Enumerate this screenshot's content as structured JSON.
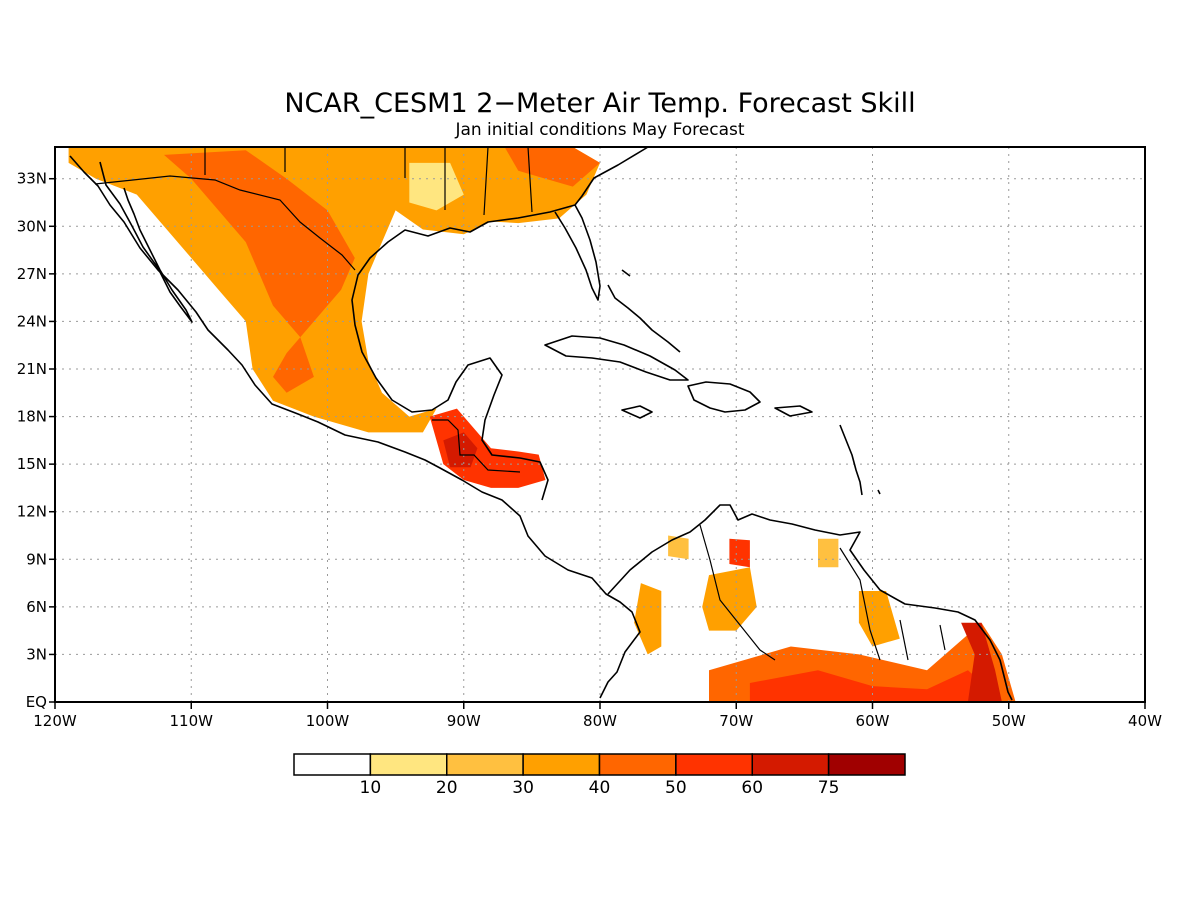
{
  "title": "NCAR_CESM1 2−Meter Air Temp. Forecast Skill",
  "subtitle": "Jan initial conditions  May Forecast",
  "map": {
    "lon_range": [
      -120,
      -40
    ],
    "lat_range": [
      0,
      35
    ],
    "x_ticks": [
      {
        "lon": -120,
        "label": "120W"
      },
      {
        "lon": -110,
        "label": "110W"
      },
      {
        "lon": -100,
        "label": "100W"
      },
      {
        "lon": -90,
        "label": "90W"
      },
      {
        "lon": -80,
        "label": "80W"
      },
      {
        "lon": -70,
        "label": "70W"
      },
      {
        "lon": -60,
        "label": "60W"
      },
      {
        "lon": -50,
        "label": "50W"
      },
      {
        "lon": -40,
        "label": "40W"
      }
    ],
    "y_ticks": [
      {
        "lat": 0,
        "label": "EQ"
      },
      {
        "lat": 3,
        "label": "3N"
      },
      {
        "lat": 6,
        "label": "6N"
      },
      {
        "lat": 9,
        "label": "9N"
      },
      {
        "lat": 12,
        "label": "12N"
      },
      {
        "lat": 15,
        "label": "15N"
      },
      {
        "lat": 18,
        "label": "18N"
      },
      {
        "lat": 21,
        "label": "21N"
      },
      {
        "lat": 24,
        "label": "24N"
      },
      {
        "lat": 27,
        "label": "27N"
      },
      {
        "lat": 30,
        "label": "30N"
      },
      {
        "lat": 33,
        "label": "33N"
      }
    ],
    "grid": true
  },
  "colorbar": {
    "colors": [
      "#ffffff",
      "#ffe680",
      "#ffc040",
      "#ffa000",
      "#ff6600",
      "#ff3300",
      "#d41a00",
      "#a00000"
    ],
    "labels": [
      "10",
      "20",
      "30",
      "40",
      "50",
      "60",
      "75"
    ]
  },
  "skill_regions": [
    {
      "name": "northern-mexico-us-southwest",
      "level": 3,
      "poly": [
        [
          -119,
          35
        ],
        [
          -113,
          35
        ],
        [
          -105,
          35
        ],
        [
          -96,
          35
        ],
        [
          -94,
          33
        ],
        [
          -95,
          31
        ],
        [
          -96,
          29
        ],
        [
          -97,
          27
        ],
        [
          -97.5,
          24
        ],
        [
          -97,
          21.5
        ],
        [
          -96,
          19.5
        ],
        [
          -94,
          18
        ],
        [
          -92,
          18.5
        ],
        [
          -93,
          17
        ],
        [
          -97,
          17
        ],
        [
          -101,
          18
        ],
        [
          -104,
          19
        ],
        [
          -105.5,
          21
        ],
        [
          -106,
          24
        ],
        [
          -108,
          26
        ],
        [
          -110,
          28
        ],
        [
          -112,
          30
        ],
        [
          -114,
          32
        ],
        [
          -117,
          33
        ],
        [
          -119,
          34
        ]
      ]
    },
    {
      "name": "mexico-core-high",
      "level": 4,
      "poly": [
        [
          -112,
          34.5
        ],
        [
          -106,
          34.8
        ],
        [
          -103,
          33
        ],
        [
          -100,
          31
        ],
        [
          -98,
          28
        ],
        [
          -99,
          26
        ],
        [
          -101,
          24
        ],
        [
          -103,
          22
        ],
        [
          -104,
          20.5
        ],
        [
          -103,
          19.5
        ],
        [
          -101,
          20.5
        ],
        [
          -102,
          23
        ],
        [
          -104,
          25
        ],
        [
          -105,
          27
        ],
        [
          -106,
          29
        ],
        [
          -108,
          31
        ],
        [
          -110,
          33
        ]
      ]
    },
    {
      "name": "south-central-us",
      "level": 3,
      "poly": [
        [
          -96,
          35
        ],
        [
          -88,
          35
        ],
        [
          -82,
          35
        ],
        [
          -80,
          34
        ],
        [
          -81,
          32
        ],
        [
          -83,
          30.5
        ],
        [
          -86,
          30.2
        ],
        [
          -88,
          30.3
        ],
        [
          -90,
          29.5
        ],
        [
          -93,
          29.8
        ],
        [
          -95,
          31
        ]
      ]
    },
    {
      "name": "southeast-us-high",
      "level": 4,
      "poly": [
        [
          -87,
          35
        ],
        [
          -82,
          35
        ],
        [
          -80,
          34
        ],
        [
          -82,
          32.5
        ],
        [
          -84,
          33
        ],
        [
          -86,
          33.5
        ]
      ]
    },
    {
      "name": "us-light-patch",
      "level": 1,
      "poly": [
        [
          -94,
          34
        ],
        [
          -91,
          34
        ],
        [
          -90,
          32
        ],
        [
          -92,
          31
        ],
        [
          -94,
          31.5
        ]
      ]
    },
    {
      "name": "central-america-core",
      "level": 5,
      "poly": [
        [
          -92.5,
          18
        ],
        [
          -90.5,
          18.5
        ],
        [
          -89,
          17
        ],
        [
          -88,
          16
        ],
        [
          -86,
          15.8
        ],
        [
          -84.5,
          15.6
        ],
        [
          -84,
          14
        ],
        [
          -86,
          13.5
        ],
        [
          -88,
          13.5
        ],
        [
          -90,
          14
        ],
        [
          -91.5,
          15
        ]
      ]
    },
    {
      "name": "guatemala-peak",
      "level": 6,
      "poly": [
        [
          -91.5,
          16.5
        ],
        [
          -90,
          17
        ],
        [
          -89,
          16
        ],
        [
          -89.5,
          14.8
        ],
        [
          -91,
          14.8
        ]
      ]
    },
    {
      "name": "colombia-west",
      "level": 3,
      "poly": [
        [
          -77,
          7.5
        ],
        [
          -75.5,
          7
        ],
        [
          -75.5,
          3.5
        ],
        [
          -76.5,
          3
        ],
        [
          -77.5,
          5
        ]
      ]
    },
    {
      "name": "venezuela-west",
      "level": 3,
      "poly": [
        [
          -72,
          8
        ],
        [
          -69,
          8.5
        ],
        [
          -68.5,
          6
        ],
        [
          -70,
          4.5
        ],
        [
          -72,
          4.5
        ],
        [
          -72.5,
          6
        ]
      ]
    },
    {
      "name": "venezuela-north-peak",
      "level": 5,
      "poly": [
        [
          -70.5,
          10.3
        ],
        [
          -69,
          10.2
        ],
        [
          -69,
          8.5
        ],
        [
          -70.5,
          8.7
        ]
      ]
    },
    {
      "name": "colombia-north-patch",
      "level": 2,
      "poly": [
        [
          -75,
          10.5
        ],
        [
          -73.5,
          10.3
        ],
        [
          -73.5,
          9
        ],
        [
          -75,
          9.2
        ]
      ]
    },
    {
      "name": "guyana-patch",
      "level": 3,
      "poly": [
        [
          -61,
          7
        ],
        [
          -59,
          7
        ],
        [
          -58,
          4
        ],
        [
          -60,
          3.5
        ],
        [
          -61,
          5
        ]
      ]
    },
    {
      "name": "trinidad-patch",
      "level": 2,
      "poly": [
        [
          -64,
          10.3
        ],
        [
          -62.5,
          10.3
        ],
        [
          -62.5,
          8.5
        ],
        [
          -64,
          8.5
        ]
      ]
    },
    {
      "name": "north-brazil-band",
      "level": 4,
      "poly": [
        [
          -72,
          2
        ],
        [
          -66,
          3.5
        ],
        [
          -61,
          3
        ],
        [
          -56,
          2
        ],
        [
          -52,
          5
        ],
        [
          -50.5,
          3
        ],
        [
          -49.5,
          0
        ],
        [
          -72,
          0
        ]
      ]
    },
    {
      "name": "amazon-high",
      "level": 5,
      "poly": [
        [
          -69,
          1.2
        ],
        [
          -64,
          2
        ],
        [
          -60,
          1
        ],
        [
          -56,
          0.8
        ],
        [
          -53,
          2
        ],
        [
          -51,
          0.5
        ],
        [
          -51,
          0
        ],
        [
          -69,
          0
        ]
      ]
    },
    {
      "name": "amapa-peak",
      "level": 6,
      "poly": [
        [
          -53.5,
          5
        ],
        [
          -52,
          5
        ],
        [
          -51,
          2
        ],
        [
          -50.5,
          0
        ],
        [
          -53,
          0
        ],
        [
          -52.5,
          3
        ]
      ]
    }
  ]
}
